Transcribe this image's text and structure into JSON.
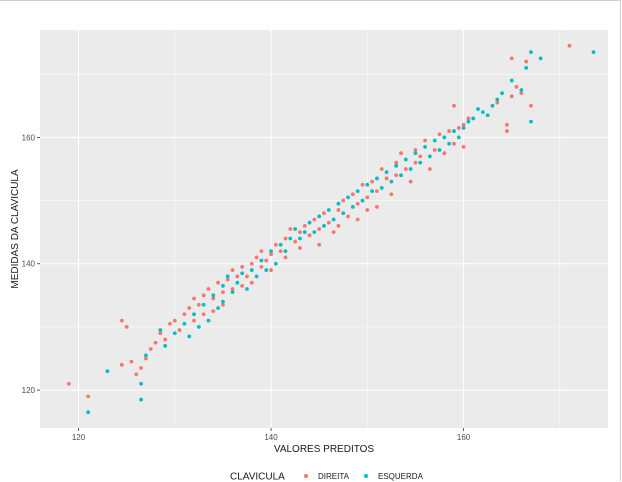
{
  "colors": {
    "panel_background": "#ebebeb",
    "grid_major": "#ffffff",
    "direita": "#F8766D",
    "esquerda": "#00BFC4"
  },
  "chart_data": {
    "type": "scatter",
    "title": "",
    "xlabel": "VALORES PREDITOS",
    "ylabel": "MEDIDAS DA CLAVICULA",
    "xlim": [
      116,
      175
    ],
    "ylim": [
      114,
      177
    ],
    "xticks": [
      120,
      140,
      160
    ],
    "yticks": [
      120,
      140,
      160
    ],
    "grid": true,
    "legend": {
      "title": "CLAVICULA",
      "position": "bottom"
    },
    "series": [
      {
        "name": "DIREITA",
        "color": "#F8766D",
        "points": [
          [
            119,
            121
          ],
          [
            121,
            119
          ],
          [
            124.5,
            131
          ],
          [
            124.5,
            124
          ],
          [
            125,
            130
          ],
          [
            125.5,
            124.5
          ],
          [
            126,
            122.5
          ],
          [
            126.5,
            123.5
          ],
          [
            127,
            125
          ],
          [
            127.5,
            126.5
          ],
          [
            128,
            127.5
          ],
          [
            128.5,
            129
          ],
          [
            129,
            128
          ],
          [
            129.5,
            130.5
          ],
          [
            130,
            131
          ],
          [
            130.5,
            129.5
          ],
          [
            131,
            132
          ],
          [
            131.5,
            133
          ],
          [
            132,
            131
          ],
          [
            132,
            134.5
          ],
          [
            132.5,
            133.5
          ],
          [
            133,
            132
          ],
          [
            133,
            135
          ],
          [
            133.5,
            136
          ],
          [
            134,
            134.5
          ],
          [
            134,
            132.5
          ],
          [
            134.5,
            137
          ],
          [
            135,
            135.5
          ],
          [
            135,
            133.5
          ],
          [
            135.5,
            137.5
          ],
          [
            136,
            136
          ],
          [
            136,
            139
          ],
          [
            136.5,
            138
          ],
          [
            137,
            136.5
          ],
          [
            137,
            139.5
          ],
          [
            137.5,
            138
          ],
          [
            138,
            140
          ],
          [
            138,
            137
          ],
          [
            138.5,
            141
          ],
          [
            139,
            139.5
          ],
          [
            139,
            142
          ],
          [
            139.5,
            140.5
          ],
          [
            140,
            141.5
          ],
          [
            140,
            139
          ],
          [
            140.5,
            143
          ],
          [
            141,
            142
          ],
          [
            141.5,
            144
          ],
          [
            141.5,
            141
          ],
          [
            142,
            145.5
          ],
          [
            142.5,
            143.5
          ],
          [
            143,
            145
          ],
          [
            143,
            142.5
          ],
          [
            143.5,
            146
          ],
          [
            144,
            144.5
          ],
          [
            144.5,
            147
          ],
          [
            145,
            145.5
          ],
          [
            145,
            143
          ],
          [
            145.5,
            148
          ],
          [
            146,
            146.5
          ],
          [
            146.5,
            145
          ],
          [
            147,
            148.5
          ],
          [
            147,
            146
          ],
          [
            147.5,
            150
          ],
          [
            148,
            147.5
          ],
          [
            148.5,
            151
          ],
          [
            149,
            149.5
          ],
          [
            149,
            147
          ],
          [
            149.5,
            152.5
          ],
          [
            150,
            150.5
          ],
          [
            150,
            148.5
          ],
          [
            150.5,
            153
          ],
          [
            151,
            151.5
          ],
          [
            151,
            149
          ],
          [
            151.5,
            155
          ],
          [
            152,
            153.5
          ],
          [
            152.5,
            151
          ],
          [
            153,
            156
          ],
          [
            153,
            154
          ],
          [
            153.5,
            157.5
          ],
          [
            154,
            155
          ],
          [
            154.5,
            153
          ],
          [
            155,
            158
          ],
          [
            155,
            156
          ],
          [
            155.5,
            157
          ],
          [
            156,
            159.5
          ],
          [
            156.5,
            155
          ],
          [
            157,
            158
          ],
          [
            157.5,
            160.5
          ],
          [
            158,
            157.5
          ],
          [
            158.5,
            161
          ],
          [
            159,
            159
          ],
          [
            159,
            165
          ],
          [
            159.5,
            161.5
          ],
          [
            160,
            162
          ],
          [
            160,
            158.5
          ],
          [
            160.5,
            163
          ],
          [
            163.5,
            165.5
          ],
          [
            164.5,
            162
          ],
          [
            164.5,
            161
          ],
          [
            165,
            166.5
          ],
          [
            165,
            172.5
          ],
          [
            165.5,
            168
          ],
          [
            166,
            167
          ],
          [
            166.5,
            172
          ],
          [
            167,
            165
          ],
          [
            171,
            174.5
          ]
        ]
      },
      {
        "name": "ESQUERDA",
        "color": "#00BFC4",
        "points": [
          [
            121,
            116.5
          ],
          [
            123,
            123
          ],
          [
            126.5,
            118.5
          ],
          [
            126.5,
            121
          ],
          [
            127,
            125.5
          ],
          [
            128.5,
            129.5
          ],
          [
            129,
            127
          ],
          [
            130,
            129
          ],
          [
            131,
            130.5
          ],
          [
            131.5,
            128.5
          ],
          [
            132,
            132
          ],
          [
            132.5,
            130
          ],
          [
            133,
            133.5
          ],
          [
            133.5,
            131
          ],
          [
            134,
            135
          ],
          [
            134.5,
            133
          ],
          [
            135,
            136.5
          ],
          [
            135,
            134
          ],
          [
            135.5,
            138
          ],
          [
            136,
            135.5
          ],
          [
            136.5,
            137
          ],
          [
            137,
            138.5
          ],
          [
            137.5,
            136
          ],
          [
            138,
            139
          ],
          [
            138.5,
            138
          ],
          [
            139,
            140.5
          ],
          [
            139.5,
            139
          ],
          [
            140,
            142
          ],
          [
            140.5,
            140
          ],
          [
            141,
            143
          ],
          [
            141.5,
            142
          ],
          [
            142,
            144
          ],
          [
            142.5,
            145.5
          ],
          [
            143,
            144
          ],
          [
            143.5,
            145
          ],
          [
            144,
            146.5
          ],
          [
            144.5,
            145
          ],
          [
            145,
            147.5
          ],
          [
            145.5,
            146
          ],
          [
            146,
            148.5
          ],
          [
            146.5,
            147
          ],
          [
            147,
            149.5
          ],
          [
            147.5,
            148
          ],
          [
            148,
            150.5
          ],
          [
            148.5,
            149
          ],
          [
            149,
            151.5
          ],
          [
            149.5,
            150
          ],
          [
            150,
            152.5
          ],
          [
            150.5,
            151.5
          ],
          [
            151,
            153.5
          ],
          [
            151.5,
            152
          ],
          [
            152,
            154.5
          ],
          [
            152.5,
            153
          ],
          [
            153,
            155.5
          ],
          [
            153.5,
            154
          ],
          [
            154,
            156.5
          ],
          [
            154.5,
            155
          ],
          [
            155,
            157.5
          ],
          [
            155.5,
            156
          ],
          [
            156,
            158.5
          ],
          [
            156.5,
            157
          ],
          [
            157,
            159.5
          ],
          [
            157.5,
            158
          ],
          [
            158,
            160
          ],
          [
            158.5,
            159
          ],
          [
            159,
            161
          ],
          [
            159.5,
            160
          ],
          [
            160,
            161.5
          ],
          [
            160.5,
            162.5
          ],
          [
            161,
            163
          ],
          [
            161.5,
            164.5
          ],
          [
            162,
            164
          ],
          [
            162.5,
            163.5
          ],
          [
            163,
            165
          ],
          [
            163.5,
            166
          ],
          [
            164,
            167
          ],
          [
            165,
            169
          ],
          [
            166,
            167.5
          ],
          [
            166.5,
            171
          ],
          [
            167,
            173.5
          ],
          [
            167,
            162.5
          ],
          [
            168,
            172.5
          ],
          [
            173.5,
            173.5
          ]
        ]
      }
    ]
  }
}
